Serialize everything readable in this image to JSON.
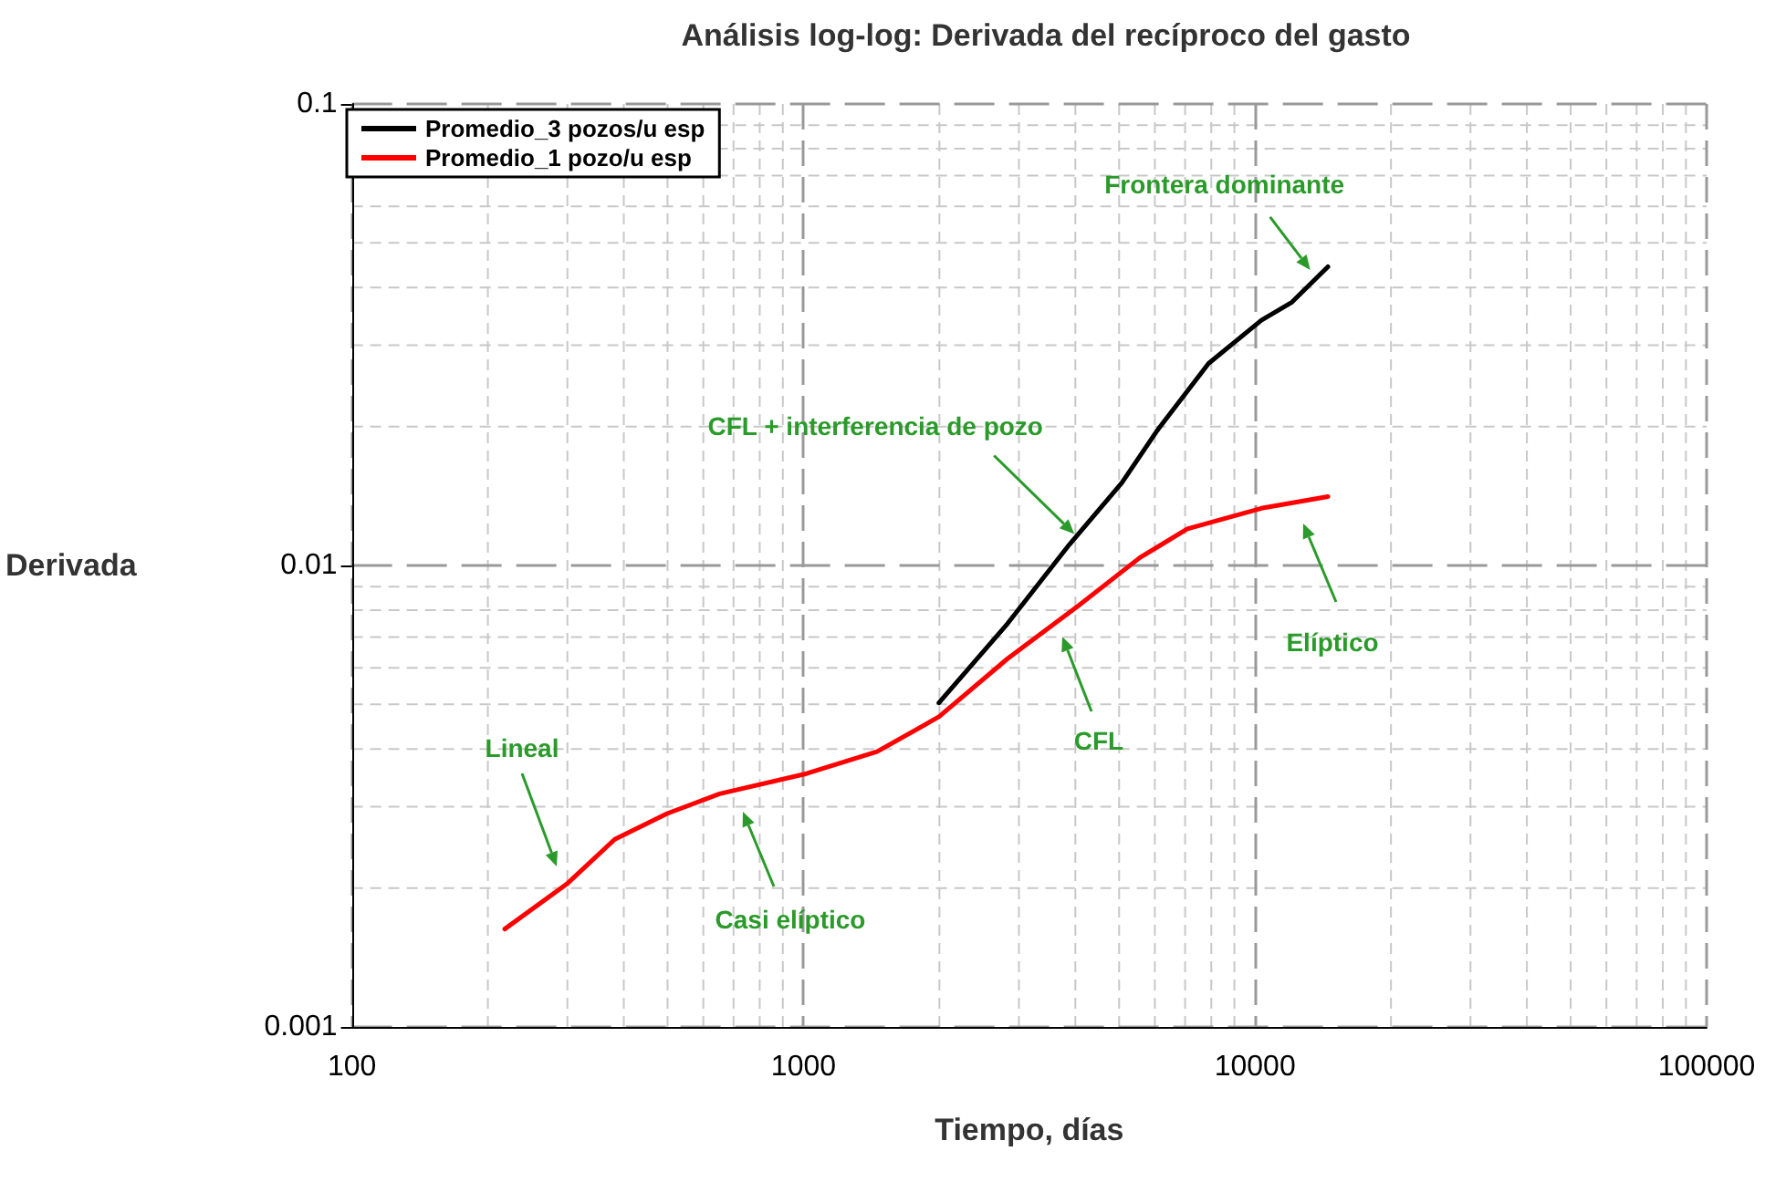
{
  "chart_data": {
    "type": "line",
    "title": "Análisis log-log: Derivada del recíproco del gasto",
    "xlabel": "Tiempo, días",
    "ylabel": "Derivada",
    "log": "xy",
    "xlim": [
      100,
      100000
    ],
    "ylim": [
      0.001,
      0.1
    ],
    "xticks": [
      100,
      1000,
      10000,
      100000
    ],
    "yticks": [
      0.001,
      0.01,
      0.1
    ],
    "grid": true,
    "legend": "top left",
    "marker": "none",
    "series": [
      {
        "name": "Promedio_3 pozos/u esp",
        "color": "#000000",
        "x": [
          1995,
          2830,
          3880,
          5070,
          6070,
          7890,
          10330,
          12070,
          14500
        ],
        "values": [
          0.00504,
          0.00748,
          0.0111,
          0.0151,
          0.0196,
          0.0274,
          0.034,
          0.0372,
          0.0444
        ]
      },
      {
        "name": "Promedio_1 pozo/u esp",
        "color": "#ff0000",
        "x": [
          218,
          299,
          382,
          499,
          652,
          1016,
          1455,
          1995,
          2830,
          4060,
          5560,
          7080,
          10330,
          14500
        ],
        "values": [
          0.00163,
          0.00204,
          0.00255,
          0.0029,
          0.0032,
          0.00354,
          0.00395,
          0.0047,
          0.00628,
          0.00818,
          0.0104,
          0.012,
          0.0133,
          0.0141
        ]
      }
    ],
    "annotations": [
      {
        "text": "Frontera dominante",
        "x": 13250,
        "y": 0.0437
      },
      {
        "text": "CFL + interferencia de pozo",
        "x": 3980,
        "y": 0.0117
      },
      "Elíptico",
      "CFL",
      "Casi elíptico",
      "Lineal"
    ]
  }
}
